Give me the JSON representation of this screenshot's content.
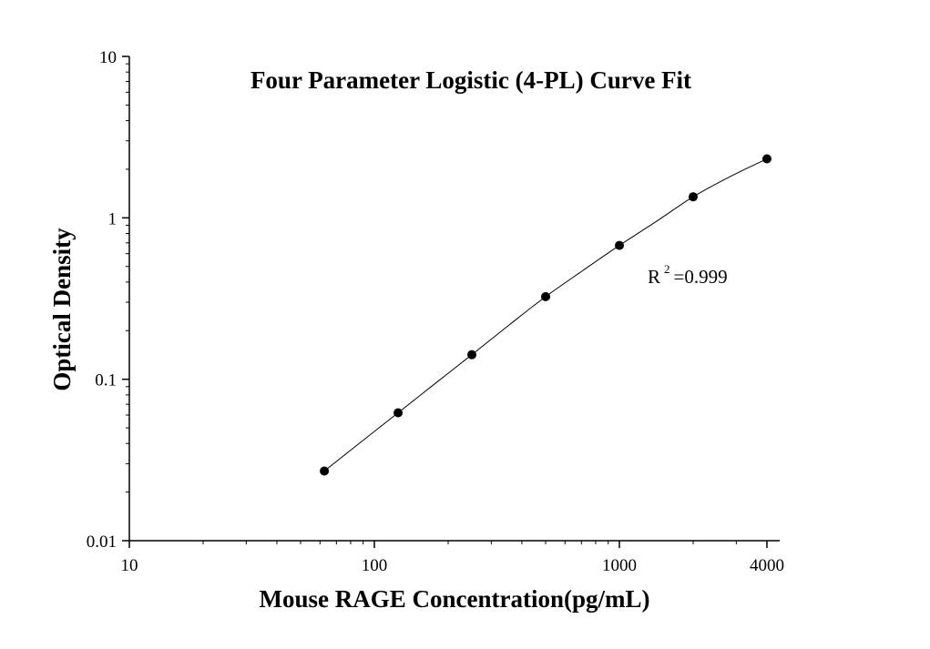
{
  "chart_data": {
    "type": "scatter",
    "title": "Four Parameter Logistic (4-PL) Curve Fit",
    "xlabel": "Mouse RAGE Concentration(pg/mL)",
    "ylabel": "Optical Density",
    "x_scale": "log",
    "y_scale": "log",
    "xlim": [
      10,
      5000
    ],
    "ylim": [
      0.01,
      10
    ],
    "x_ticks": [
      10,
      100,
      1000,
      4000
    ],
    "x_tick_labels": [
      "10",
      "100",
      "1000",
      "4000"
    ],
    "y_ticks": [
      0.01,
      0.1,
      1,
      10
    ],
    "y_tick_labels": [
      "0.01",
      "0.1",
      "1",
      "10"
    ],
    "grid": false,
    "legend": "none",
    "series": [
      {
        "x": [
          62.5,
          125,
          250,
          500,
          1000,
          2000,
          4000
        ],
        "y": [
          0.027,
          0.062,
          0.142,
          0.325,
          0.675,
          1.35,
          2.32
        ]
      }
    ],
    "fit_curve": {
      "model": "4-PL",
      "x": [
        62.5,
        88.4,
        125,
        176.8,
        250,
        353.6,
        500,
        707.1,
        1000,
        1414.2,
        2000,
        2828.4,
        4000
      ],
      "y": [
        0.027,
        0.041,
        0.062,
        0.094,
        0.142,
        0.216,
        0.325,
        0.47,
        0.675,
        0.95,
        1.35,
        1.8,
        2.32
      ]
    },
    "annotations": [
      {
        "text": "R",
        "superscript": "2",
        "suffix": "=0.999"
      }
    ],
    "colors": {
      "background": "#ffffff",
      "axis": "#000000",
      "marker": "#000000",
      "curve": "#000000"
    }
  }
}
